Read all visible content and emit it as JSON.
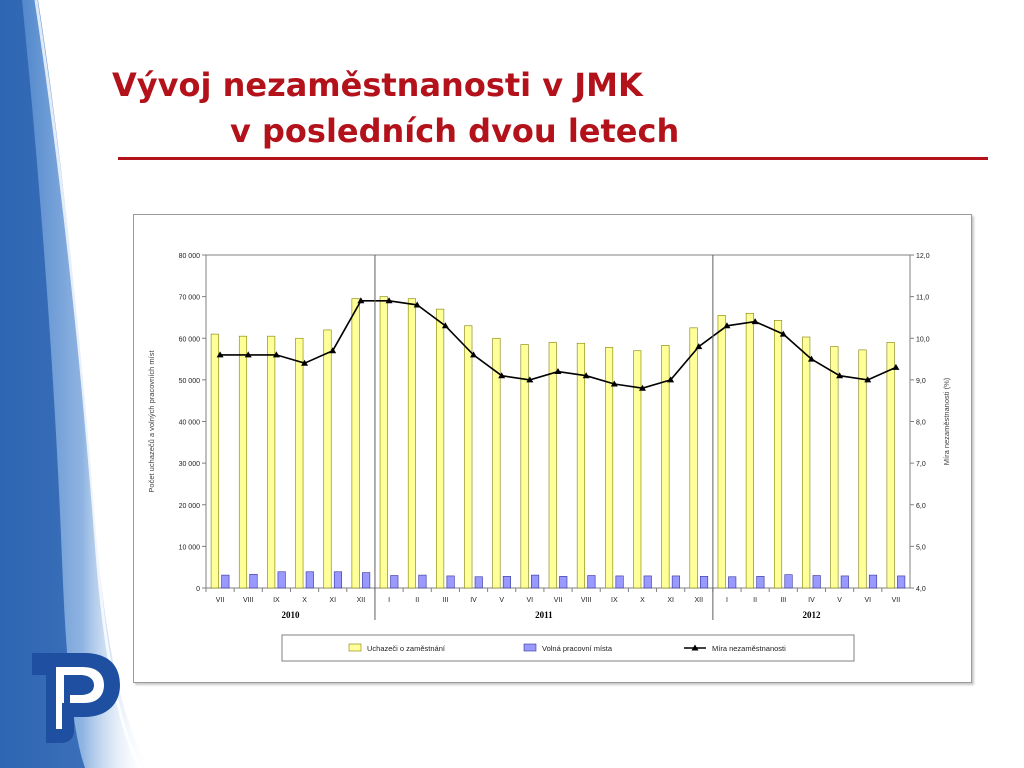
{
  "slide": {
    "title_line1": "Vývoj nezaměstnanosti v JMK",
    "title_line2": "v posledních dvou letech"
  },
  "logo": {
    "icon": "p-logo-icon"
  },
  "colors": {
    "title": "#b3121b",
    "applicants_bar": "#ffff99",
    "vacancies_bar": "#9999ff",
    "rate_line": "#000000"
  },
  "chart_data": {
    "type": "bar",
    "categories": [
      "VII",
      "VIII",
      "IX",
      "X",
      "XI",
      "XII",
      "I",
      "II",
      "III",
      "IV",
      "V",
      "VI",
      "VII",
      "VIII",
      "IX",
      "X",
      "XI",
      "XII",
      "I",
      "II",
      "III",
      "IV",
      "V",
      "VI",
      "VII"
    ],
    "year_groups": [
      {
        "label": "2010",
        "start": 0,
        "end": 5
      },
      {
        "label": "2011",
        "start": 6,
        "end": 17
      },
      {
        "label": "2012",
        "start": 18,
        "end": 24
      }
    ],
    "series": [
      {
        "name": "Uchazeči o zaměstnání",
        "kind": "bar",
        "axis": "left",
        "values": [
          61000,
          60500,
          60500,
          60000,
          62000,
          69500,
          70000,
          69500,
          67000,
          63000,
          60000,
          58500,
          59000,
          58800,
          57800,
          57000,
          58300,
          62500,
          65500,
          66000,
          64300,
          60300,
          58000,
          57200,
          59000
        ]
      },
      {
        "name": "Volná pracovní místa",
        "kind": "bar",
        "axis": "left",
        "values": [
          3100,
          3300,
          3900,
          3900,
          3900,
          3700,
          3000,
          3100,
          2900,
          2700,
          2800,
          3100,
          2800,
          3000,
          2900,
          2900,
          2900,
          2800,
          2700,
          2800,
          3200,
          3000,
          2900,
          3100,
          2900
        ]
      },
      {
        "name": "Míra nezaměstnanosti",
        "kind": "line",
        "axis": "right",
        "values": [
          9.6,
          9.6,
          9.6,
          9.4,
          9.7,
          10.9,
          10.9,
          10.8,
          10.3,
          9.6,
          9.1,
          9.0,
          9.2,
          9.1,
          8.9,
          8.8,
          9.0,
          9.8,
          10.3,
          10.4,
          10.1,
          9.5,
          9.1,
          9.0,
          9.3
        ]
      }
    ],
    "y_left": {
      "label": "Počet uchazečů a volných pracovních míst",
      "ylim": [
        0,
        80000
      ],
      "ticks": [
        "0",
        "10 000",
        "20 000",
        "30 000",
        "40 000",
        "50 000",
        "60 000",
        "70 000",
        "80 000"
      ]
    },
    "y_right": {
      "label": "Míra nezaměstnanosti (%)",
      "ylim": [
        4.0,
        12.0
      ],
      "ticks": [
        "4,0",
        "5,0",
        "6,0",
        "7,0",
        "8,0",
        "9,0",
        "10,0",
        "11,0",
        "12,0"
      ]
    },
    "grid": false,
    "legend_position": "bottom"
  }
}
